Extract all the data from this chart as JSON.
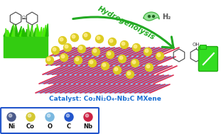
{
  "title": "Catalyst: Co₂Ni₂O₄-Nb₂C MXene",
  "title_color": "#1a6fd4",
  "hydrogenolysis_text": "Hydrogenolysis",
  "hydrogenolysis_color": "#22aa22",
  "bg_color": "#ffffff",
  "legend_items": [
    {
      "label": "Ni",
      "color": "#4a5a8a"
    },
    {
      "label": "Co",
      "color": "#d4c830"
    },
    {
      "label": "O",
      "color": "#7ab8e0"
    },
    {
      "label": "C",
      "color": "#2255cc"
    },
    {
      "label": "Nb",
      "color": "#cc2244"
    }
  ],
  "legend_box_color": "#2255cc",
  "figsize": [
    3.11,
    1.89
  ],
  "dpi": 100,
  "grass_color1": "#33cc11",
  "grass_color2": "#22bb00",
  "grass_color3": "#55dd22",
  "mxene_blue": "#5577cc",
  "mxene_red": "#dd3355",
  "mxene_white": "#eeeeff",
  "particle_yellow": "#ddcc22",
  "particle_highlight": "#ffee88",
  "arrow_color": "#22aa22",
  "container_color": "#33dd22",
  "h2_color": "#555555",
  "product_color": "#444444"
}
